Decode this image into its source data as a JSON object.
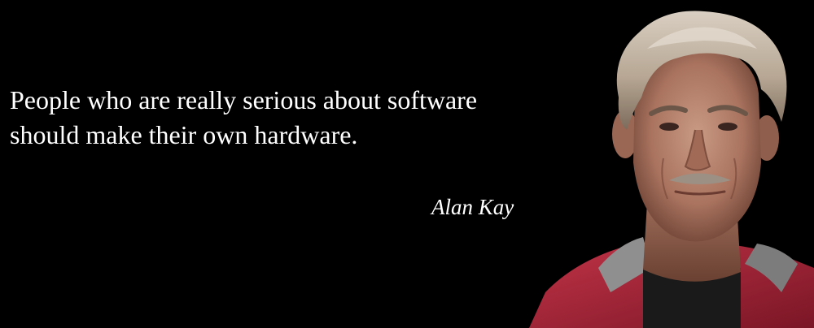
{
  "quote": {
    "lines": [
      "People who are really serious about software",
      "should make their own hardware."
    ]
  },
  "author": "Alan Kay",
  "colors": {
    "background": "#000000",
    "text": "#ffffff",
    "jacket": "#b3283a",
    "hood_lining": "#8a8a8a"
  }
}
